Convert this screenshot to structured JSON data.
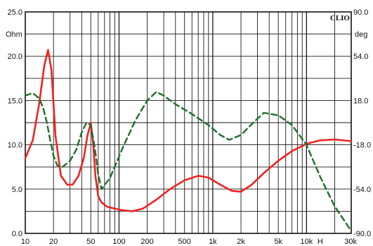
{
  "chart_data": {
    "type": "line",
    "brand": "CLIO",
    "x_scale": "log",
    "xlim": [
      10,
      30000
    ],
    "x_ticks": [
      {
        "value": 10,
        "label": "10"
      },
      {
        "value": 20,
        "label": "20"
      },
      {
        "value": 50,
        "label": "50"
      },
      {
        "value": 100,
        "label": "100"
      },
      {
        "value": 200,
        "label": "200"
      },
      {
        "value": 500,
        "label": "500"
      },
      {
        "value": 1000,
        "label": "1k"
      },
      {
        "value": 2000,
        "label": "2k"
      },
      {
        "value": 5000,
        "label": "5k"
      },
      {
        "value": 10000,
        "label": "10k"
      },
      {
        "value": 30000,
        "label": "30k"
      }
    ],
    "x_unit": "H",
    "left_axis": {
      "unit": "Ohm",
      "ylim": [
        0,
        25
      ],
      "ticks": [
        "0.0",
        "5.0",
        "10.0",
        "15.0",
        "20.0",
        "25.0"
      ]
    },
    "right_axis": {
      "unit": "deg",
      "ylim": [
        -90,
        90
      ],
      "ticks": [
        "-90.0",
        "-54.0",
        "-18.0",
        "18.0",
        "54.0",
        "90.0"
      ]
    },
    "grid": true,
    "series": [
      {
        "axis": "left",
        "color": "#ee2222",
        "style": "solid",
        "x": [
          10,
          12,
          14,
          16,
          17.5,
          19,
          21,
          24,
          28,
          32,
          37,
          42,
          46,
          50,
          53,
          56,
          60,
          65,
          75,
          90,
          110,
          140,
          180,
          250,
          350,
          500,
          700,
          900,
          1200,
          1600,
          2000,
          2600,
          3500,
          5000,
          7000,
          10000,
          14000,
          20000,
          30000
        ],
        "y": [
          8.5,
          10.5,
          14.5,
          19,
          20.7,
          18.5,
          11,
          6.5,
          5.5,
          5.5,
          6.5,
          8.5,
          11,
          12.5,
          10,
          6.5,
          4.2,
          3.5,
          3,
          2.8,
          2.6,
          2.5,
          2.8,
          3.8,
          5,
          6,
          6.5,
          6.3,
          5.5,
          4.8,
          4.7,
          5.5,
          6.8,
          8.2,
          9.3,
          10.1,
          10.5,
          10.6,
          10.4
        ]
      },
      {
        "axis": "right",
        "color": "#1e6e2a",
        "style": "dashed",
        "x": [
          10,
          12,
          14,
          15.5,
          17,
          18.5,
          20,
          22,
          25,
          30,
          35,
          40,
          45,
          50,
          55,
          60,
          65,
          80,
          110,
          150,
          200,
          250,
          300,
          400,
          600,
          900,
          1200,
          1500,
          2000,
          2700,
          3500,
          5000,
          7000,
          10000,
          14000,
          20000,
          30000
        ],
        "y": [
          22,
          24,
          20,
          12,
          0,
          -15,
          -27,
          -35,
          -36,
          -31,
          -22,
          -8,
          0,
          -2,
          -20,
          -42,
          -54,
          -45,
          -20,
          2,
          18,
          25,
          22,
          15,
          7,
          -2,
          -10,
          -14,
          -10,
          0,
          8,
          6,
          -2,
          -18,
          -44,
          -68,
          -88
        ]
      }
    ]
  }
}
